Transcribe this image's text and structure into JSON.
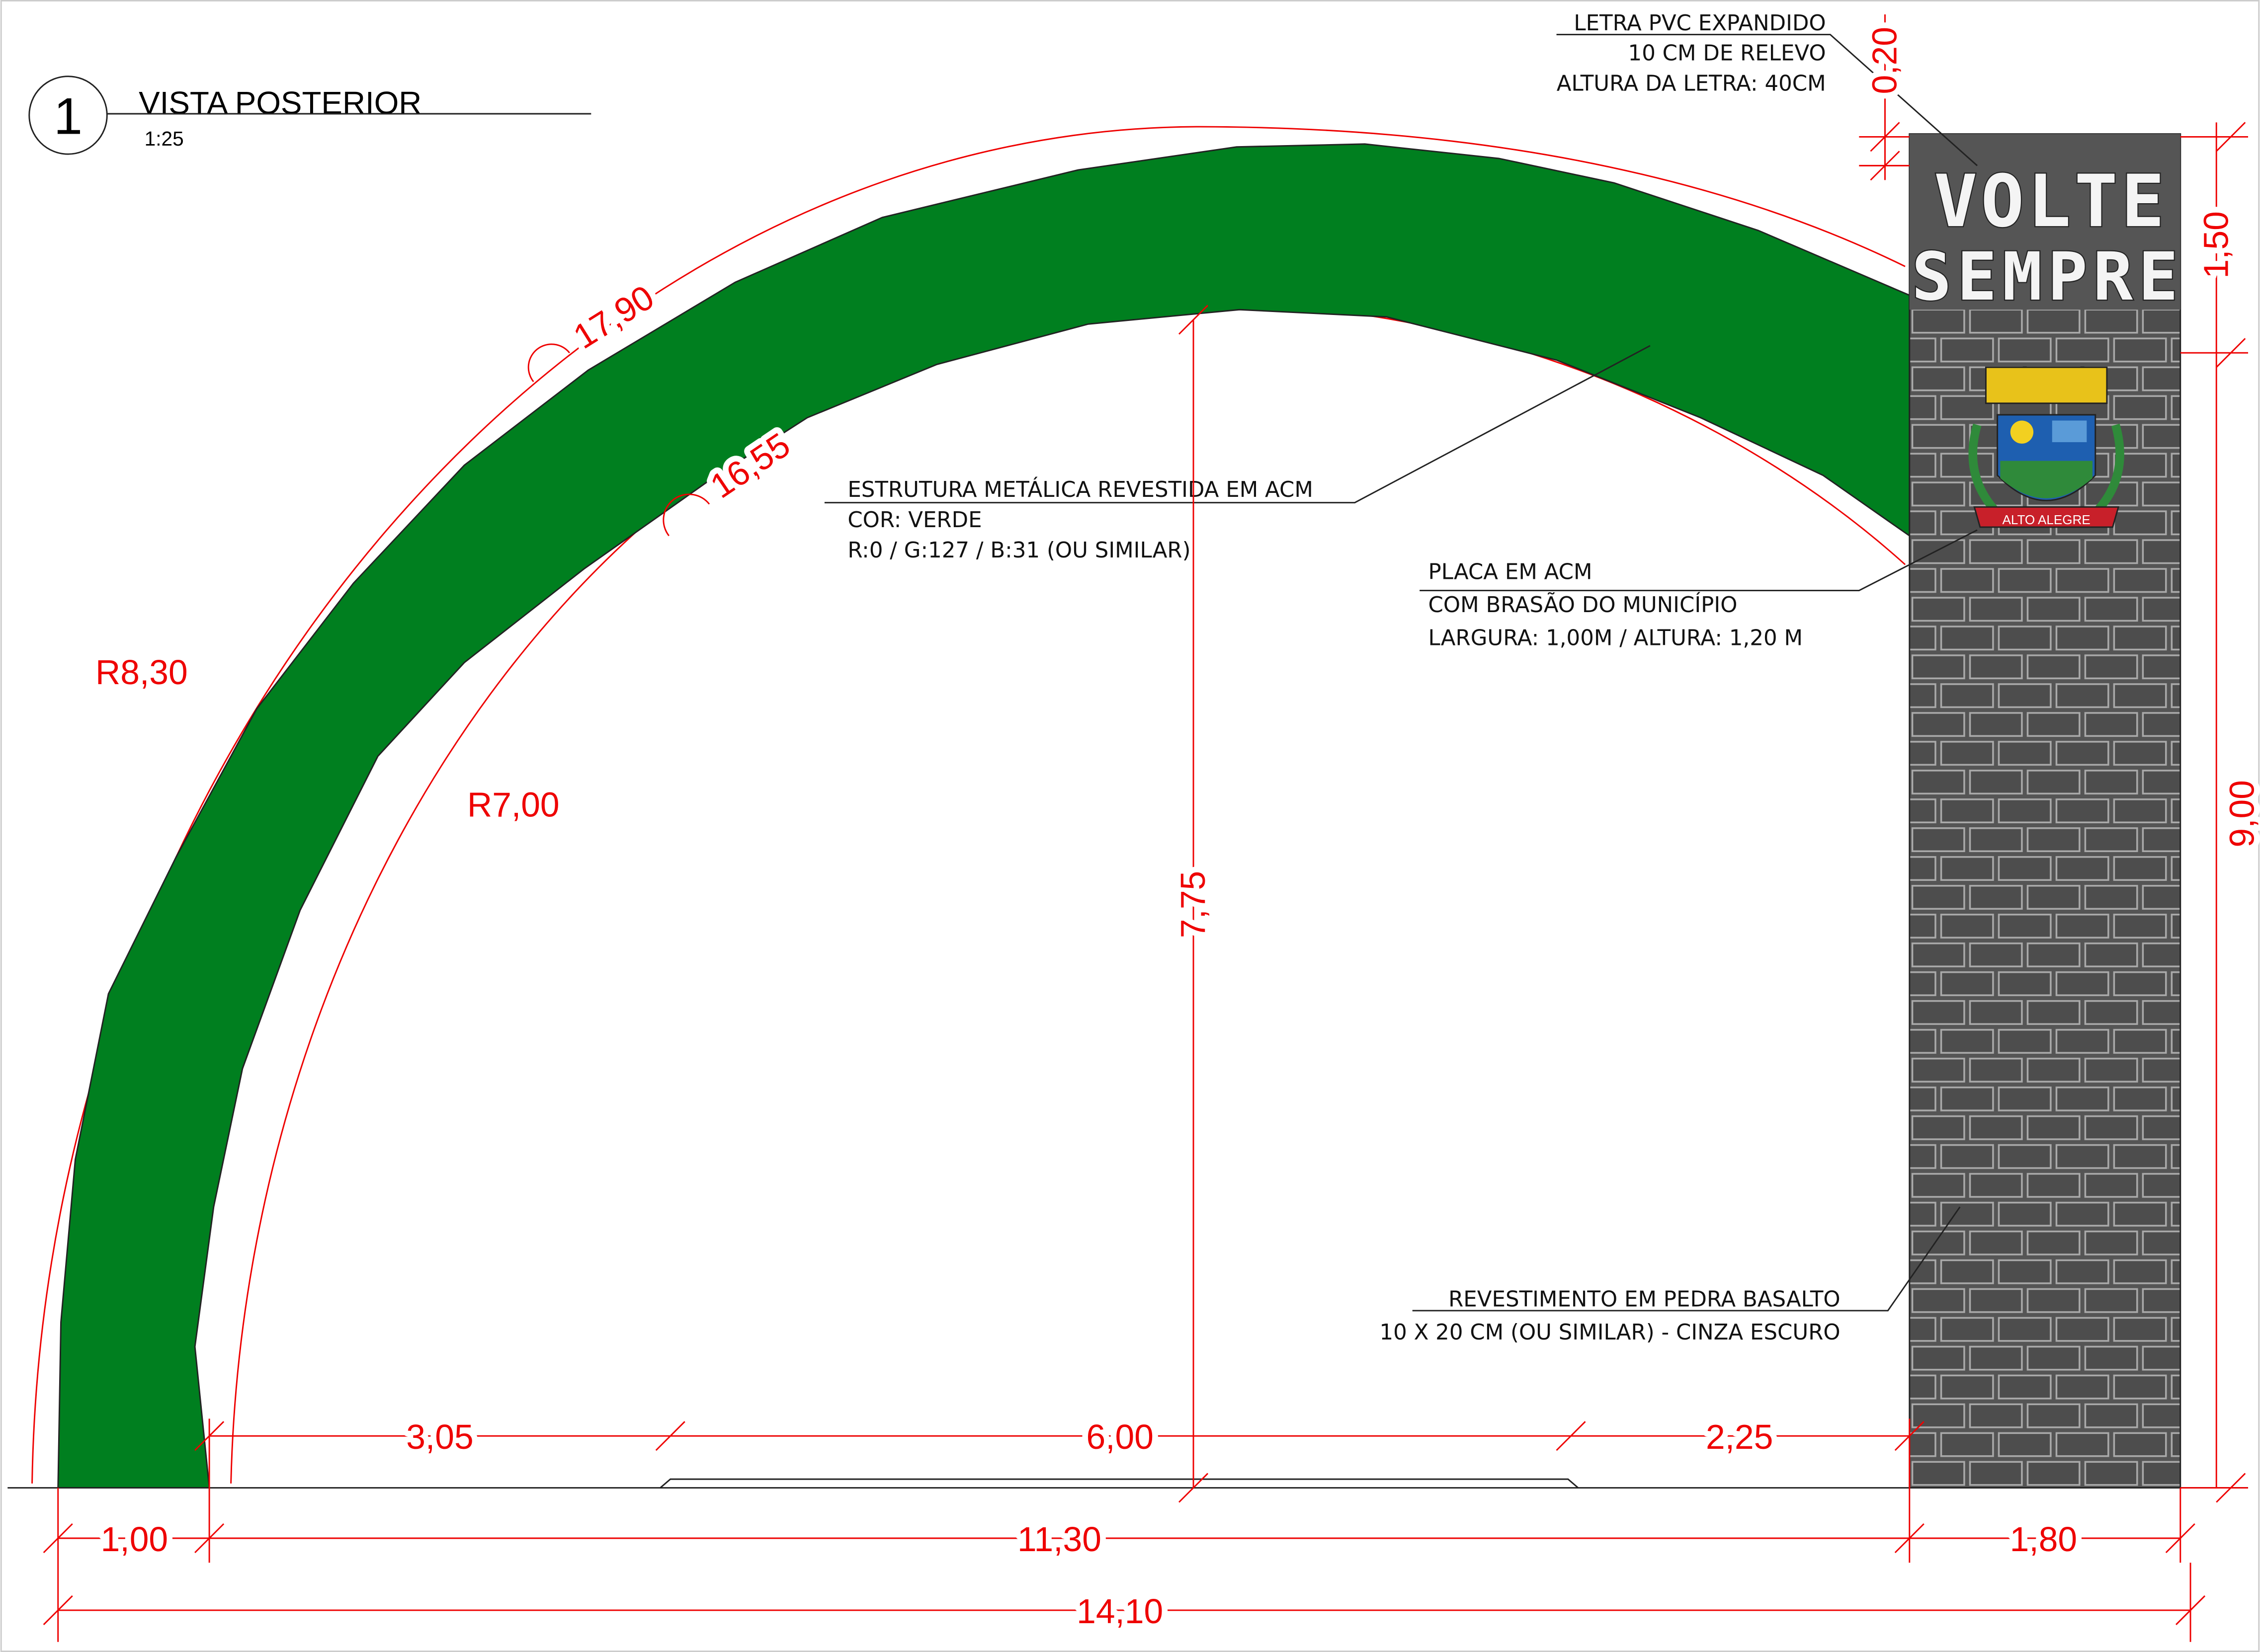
{
  "header": {
    "number": "1",
    "title": "VISTA POSTERIOR",
    "scale": "1:25"
  },
  "sign": {
    "line1": "VOLTE",
    "line2": "SEMPRE",
    "emblem_text": "ALTO ALEGRE"
  },
  "notes": {
    "letters": [
      "LETRA PVC EXPANDIDO",
      "10 CM DE RELEVO",
      "ALTURA DA LETRA: 40CM"
    ],
    "structure": [
      "ESTRUTURA METÁLICA REVESTIDA EM ACM",
      "COR: VERDE",
      "R:0 / G:127 / B:31 (OU SIMILAR)"
    ],
    "plate": [
      "PLACA EM  ACM",
      "COM BRASÃO DO MUNICÍPIO",
      "LARGURA: 1,00M / ALTURA: 1,20 M"
    ],
    "cladding": [
      "REVESTIMENTO EM PEDRA BASALTO",
      "10 X 20 CM (OU SIMILAR) - CINZA ESCURO"
    ]
  },
  "dimensions": {
    "arc_outer": "17,90",
    "arc_inner": "16,55",
    "radius_outer": "R8,30",
    "radius_inner": "R7,00",
    "height_inner": "7,75",
    "span_left": "3,05",
    "span_mid": "6,00",
    "span_right": "2,25",
    "base_arch": "1,00",
    "base_opening": "11,30",
    "base_pillar": "1,80",
    "total": "14,10",
    "letter_margin": "0,20",
    "letters_height": "1,50",
    "pillar_height": "9,00"
  }
}
